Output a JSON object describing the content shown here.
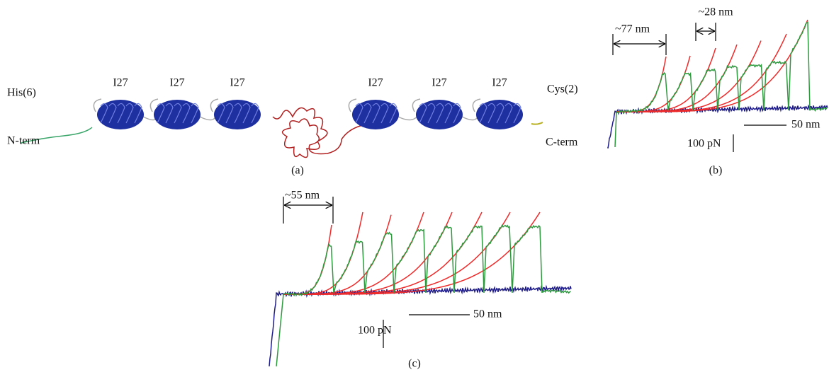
{
  "panel_a": {
    "n_label": "His(6)",
    "n_term": "N-term",
    "c_label": "Cys(2)",
    "c_term": "C-term",
    "domains": [
      "I27",
      "I27",
      "I27",
      "I27",
      "I27",
      "I27"
    ],
    "caption": "(a)"
  },
  "panel_b": {
    "first_spacing": "~77 nm",
    "spacing": "~28 nm",
    "x_scale": "50 nm",
    "force_scale": "100 pN",
    "caption": "(b)"
  },
  "panel_c": {
    "first_spacing": "~55 nm",
    "x_scale": "50 nm",
    "force_scale": "100 pN",
    "caption": "(c)"
  }
}
